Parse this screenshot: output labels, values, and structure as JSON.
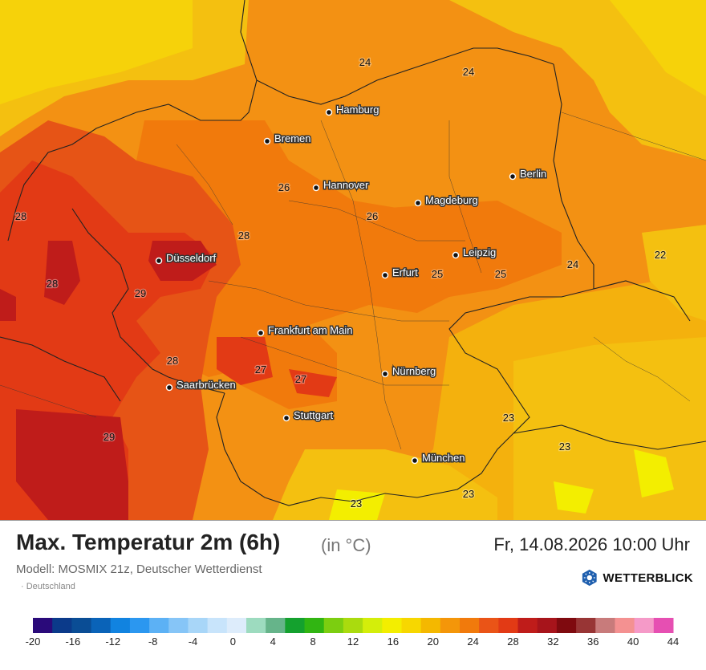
{
  "header": {
    "title": "Max. Temperatur 2m (6h)",
    "unit": "(in °C)",
    "datetime": "Fr, 14.08.2026 10:00 Uhr",
    "model": "Modell: MOSMIX 21z, Deutscher Wetterdienst",
    "region": "· Deutschland",
    "brand": "WETTERBLICK"
  },
  "cities": [
    {
      "name": "Hamburg"
    },
    {
      "name": "Bremen"
    },
    {
      "name": "Hannover"
    },
    {
      "name": "Berlin"
    },
    {
      "name": "Magdeburg"
    },
    {
      "name": "Düsseldorf"
    },
    {
      "name": "Leipzig"
    },
    {
      "name": "Erfurt"
    },
    {
      "name": "Frankfurt am Main"
    },
    {
      "name": "Nürnberg"
    },
    {
      "name": "Saarbrücken"
    },
    {
      "name": "Stuttgart"
    },
    {
      "name": "München"
    }
  ],
  "temperature_labels": [
    "24",
    "24",
    "28",
    "26",
    "26",
    "28",
    "29",
    "28",
    "25",
    "25",
    "24",
    "22",
    "28",
    "27",
    "27",
    "23",
    "29",
    "23",
    "23",
    "23"
  ],
  "legend": {
    "ticks": [
      "-20",
      "-16",
      "-12",
      "-8",
      "-4",
      "0",
      "4",
      "8",
      "12",
      "16",
      "20",
      "24",
      "28",
      "32",
      "36",
      "40",
      "44"
    ],
    "colors": [
      "#2a0a7a",
      "#0b3a8a",
      "#0a4d95",
      "#0a63b8",
      "#1183e0",
      "#2b97f0",
      "#5cb1f5",
      "#86c5f7",
      "#a8d6f8",
      "#c8e4fb",
      "#ddecfb",
      "#9ddbbf",
      "#66b48a",
      "#14a12e",
      "#31b512",
      "#7cce10",
      "#aadb0e",
      "#d4ee0a",
      "#f3ee00",
      "#f7d700",
      "#f4b800",
      "#f49609",
      "#f17a0c",
      "#ea5417",
      "#e23a15",
      "#bf1c1a",
      "#a7141b",
      "#7f0a0f",
      "#983535",
      "#c87b7b",
      "#f49191",
      "#f59ac8",
      "#e64fb2"
    ]
  }
}
